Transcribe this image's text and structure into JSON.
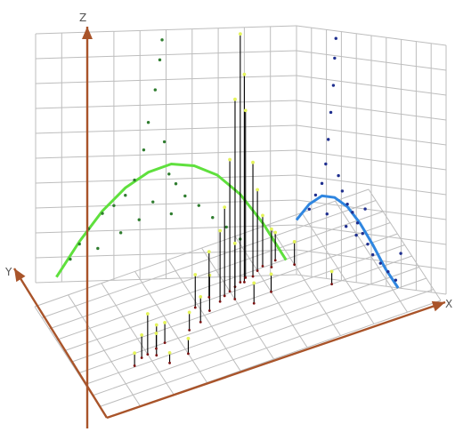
{
  "chart_data": {
    "type": "scatter",
    "subtype": "3d-scatter-with-stems-and-projected-curves",
    "title": "",
    "axes": {
      "x_label": "X",
      "y_label": "Y",
      "z_label": "Z",
      "x_range": [
        0,
        10
      ],
      "y_range": [
        0,
        10
      ],
      "z_range": [
        0,
        10
      ],
      "grid": true,
      "axis_color": "#a9542a"
    },
    "colors": {
      "stems": "#000000",
      "stem_tips": "#e4f35a",
      "stem_base": "#7a1010",
      "left_wall_points": "#2f7d2f",
      "right_wall_points": "#1f2f8f",
      "left_wall_curve": "#5fe03d",
      "right_wall_curve": "#2f86e0",
      "grid": "#bdbdbd"
    },
    "left_wall_curve": {
      "x": [
        0.0,
        1.0,
        2.0,
        3.0,
        4.0,
        5.0,
        6.0,
        7.0,
        8.0,
        9.0,
        10.0
      ],
      "z": [
        0.2,
        1.6,
        2.8,
        3.7,
        4.3,
        4.6,
        4.5,
        4.1,
        3.3,
        2.1,
        0.6
      ]
    },
    "right_wall_curve": {
      "y": [
        0.0,
        1.0,
        2.0,
        3.0,
        4.0,
        5.0,
        6.0,
        7.0,
        8.0
      ],
      "z": [
        2.2,
        2.9,
        3.3,
        3.3,
        3.0,
        2.4,
        1.6,
        0.7,
        0.0
      ]
    },
    "stem_points": [
      {
        "x": 1.8,
        "y": 3.5,
        "z": 0.9
      },
      {
        "x": 2.0,
        "y": 3.6,
        "z": 1.6
      },
      {
        "x": 2.2,
        "y": 3.3,
        "z": 1.2
      },
      {
        "x": 2.3,
        "y": 3.8,
        "z": 0.6
      },
      {
        "x": 1.5,
        "y": 3.1,
        "z": 0.5
      },
      {
        "x": 2.6,
        "y": 4.0,
        "z": 0.8
      },
      {
        "x": 3.4,
        "y": 4.3,
        "z": 0.7
      },
      {
        "x": 3.8,
        "y": 4.6,
        "z": 1.0
      },
      {
        "x": 4.2,
        "y": 5.2,
        "z": 1.4
      },
      {
        "x": 4.6,
        "y": 5.6,
        "z": 2.8
      },
      {
        "x": 4.8,
        "y": 5.9,
        "z": 3.5
      },
      {
        "x": 5.0,
        "y": 6.1,
        "z": 5.2
      },
      {
        "x": 5.2,
        "y": 6.3,
        "z": 7.4
      },
      {
        "x": 5.4,
        "y": 6.5,
        "z": 9.8
      },
      {
        "x": 5.5,
        "y": 6.4,
        "z": 8.2
      },
      {
        "x": 5.6,
        "y": 6.7,
        "z": 6.6
      },
      {
        "x": 5.8,
        "y": 6.6,
        "z": 4.5
      },
      {
        "x": 6.0,
        "y": 6.9,
        "z": 3.2
      },
      {
        "x": 6.2,
        "y": 7.1,
        "z": 2.0
      },
      {
        "x": 6.4,
        "y": 6.8,
        "z": 1.5
      },
      {
        "x": 6.6,
        "y": 7.2,
        "z": 1.1
      },
      {
        "x": 5.0,
        "y": 5.4,
        "z": 2.2
      },
      {
        "x": 4.4,
        "y": 6.2,
        "z": 1.8
      },
      {
        "x": 3.9,
        "y": 5.8,
        "z": 1.3
      },
      {
        "x": 7.0,
        "y": 6.4,
        "z": 0.9
      },
      {
        "x": 6.0,
        "y": 5.0,
        "z": 0.7
      },
      {
        "x": 3.0,
        "y": 2.6,
        "z": 0.6
      },
      {
        "x": 2.4,
        "y": 2.4,
        "z": 0.4
      },
      {
        "x": 5.4,
        "y": 4.6,
        "z": 0.8
      },
      {
        "x": 7.6,
        "y": 4.0,
        "z": 0.5
      }
    ],
    "left_wall_points": [
      {
        "x": 0.6,
        "z": 0.9
      },
      {
        "x": 1.0,
        "z": 1.5
      },
      {
        "x": 1.4,
        "z": 2.1
      },
      {
        "x": 2.0,
        "z": 2.7
      },
      {
        "x": 2.5,
        "z": 3.0
      },
      {
        "x": 3.0,
        "z": 3.4
      },
      {
        "x": 3.4,
        "z": 4.0
      },
      {
        "x": 3.8,
        "z": 5.2
      },
      {
        "x": 4.0,
        "z": 6.3
      },
      {
        "x": 4.3,
        "z": 7.6
      },
      {
        "x": 4.5,
        "z": 8.8
      },
      {
        "x": 4.6,
        "z": 9.6
      },
      {
        "x": 4.7,
        "z": 5.5
      },
      {
        "x": 4.9,
        "z": 4.2
      },
      {
        "x": 5.2,
        "z": 3.8
      },
      {
        "x": 5.6,
        "z": 3.3
      },
      {
        "x": 6.2,
        "z": 2.9
      },
      {
        "x": 6.8,
        "z": 2.4
      },
      {
        "x": 7.4,
        "z": 2.0
      },
      {
        "x": 8.0,
        "z": 1.5
      },
      {
        "x": 2.8,
        "z": 1.9
      },
      {
        "x": 3.6,
        "z": 2.4
      },
      {
        "x": 4.2,
        "z": 3.1
      },
      {
        "x": 5.0,
        "z": 2.6
      },
      {
        "x": 1.8,
        "z": 1.3
      }
    ],
    "right_wall_points": [
      {
        "y": 1.0,
        "z": 2.7
      },
      {
        "y": 1.5,
        "z": 3.3
      },
      {
        "y": 2.0,
        "z": 3.8
      },
      {
        "y": 2.3,
        "z": 4.6
      },
      {
        "y": 2.5,
        "z": 5.6
      },
      {
        "y": 2.7,
        "z": 6.7
      },
      {
        "y": 2.9,
        "z": 7.8
      },
      {
        "y": 3.0,
        "z": 8.9
      },
      {
        "y": 3.1,
        "z": 9.7
      },
      {
        "y": 3.3,
        "z": 4.2
      },
      {
        "y": 3.6,
        "z": 3.6
      },
      {
        "y": 4.0,
        "z": 3.1
      },
      {
        "y": 4.4,
        "z": 2.8
      },
      {
        "y": 4.8,
        "z": 2.4
      },
      {
        "y": 5.2,
        "z": 2.0
      },
      {
        "y": 5.6,
        "z": 1.6
      },
      {
        "y": 6.0,
        "z": 1.2
      },
      {
        "y": 6.6,
        "z": 0.9
      },
      {
        "y": 7.2,
        "z": 0.6
      },
      {
        "y": 7.8,
        "z": 0.3
      },
      {
        "y": 8.2,
        "z": 1.4
      },
      {
        "y": 3.9,
        "z": 2.2
      },
      {
        "y": 4.7,
        "z": 1.9
      },
      {
        "y": 2.4,
        "z": 2.6
      },
      {
        "y": 5.4,
        "z": 3.0
      }
    ]
  }
}
